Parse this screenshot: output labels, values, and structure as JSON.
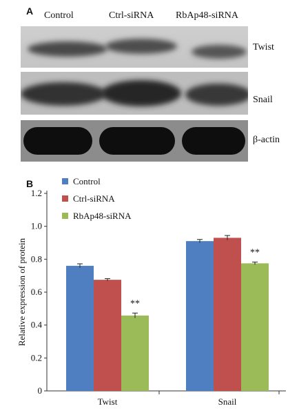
{
  "panel_a": {
    "letter": "A",
    "columns": [
      "Control",
      "Ctrl-siRNA",
      "RbAp48-siRNA"
    ],
    "rows": [
      "Twist",
      "Snail",
      "β-actin"
    ]
  },
  "panel_b": {
    "letter": "B"
  },
  "chart_data": {
    "type": "bar",
    "categories": [
      "Twist",
      "Snail"
    ],
    "series": [
      {
        "name": "Control",
        "values": [
          0.76,
          0.91
        ],
        "errors": [
          0.012,
          0.01
        ],
        "color": "#4f7fc0"
      },
      {
        "name": "Ctrl-siRNA",
        "values": [
          0.675,
          0.93
        ],
        "errors": [
          0.007,
          0.014
        ],
        "color": "#c0504d"
      },
      {
        "name": "RbAp48-siRNA",
        "values": [
          0.458,
          0.775
        ],
        "errors": [
          0.015,
          0.008
        ],
        "color": "#9bbb59"
      }
    ],
    "annotations": [
      "**",
      "**"
    ],
    "ylabel": "Relative expression of protein",
    "xlabel": "",
    "ylim": [
      0,
      1.2
    ],
    "yticks": [
      "0",
      "0.2",
      "0.4",
      "0.6",
      "0.8",
      "1.0",
      "1.2"
    ],
    "grid": false,
    "legend": "top-left"
  }
}
